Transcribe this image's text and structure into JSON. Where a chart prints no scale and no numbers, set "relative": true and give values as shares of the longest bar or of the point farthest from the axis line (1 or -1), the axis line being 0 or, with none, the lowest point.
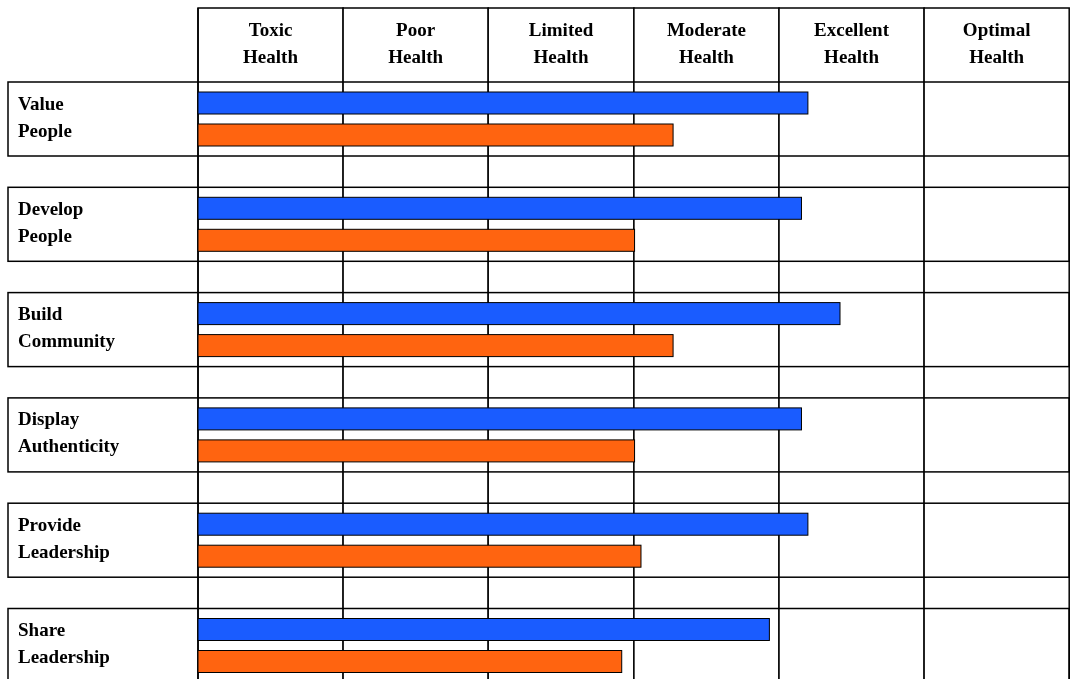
{
  "chart_data": {
    "type": "bar",
    "orientation": "horizontal",
    "relative": true,
    "categories": [
      "Value People",
      "Develop People",
      "Build Community",
      "Display Authenticity",
      "Provide Leadership",
      "Share Leadership"
    ],
    "series": [
      {
        "color": "#1a5cff",
        "values": [
          0.95,
          0.94,
          1,
          0.94,
          0.95,
          0.89
        ]
      },
      {
        "color": "#ff6410",
        "values": [
          0.74,
          0.68,
          0.74,
          0.68,
          0.69,
          0.66
        ]
      }
    ],
    "bands": [
      {
        "axis": "x",
        "from": 0,
        "to": 0.226,
        "label": "Toxic Health",
        "color": "#ffffff"
      },
      {
        "axis": "x",
        "from": 0.226,
        "to": 0.452,
        "label": "Poor Health",
        "color": "#ffffff"
      },
      {
        "axis": "x",
        "from": 0.452,
        "to": 0.679,
        "label": "Limited Health",
        "color": "#ffffff"
      },
      {
        "axis": "x",
        "from": 0.679,
        "to": 0.905,
        "label": "Moderate Health",
        "color": "#ffffff"
      },
      {
        "axis": "x",
        "from": 0.905,
        "to": 1.131,
        "label": "Excellent Health",
        "color": "#ffffff"
      },
      {
        "axis": "x",
        "from": 1.131,
        "to": 1.357,
        "label": "Optimal Health",
        "color": "#ffffff"
      }
    ]
  }
}
